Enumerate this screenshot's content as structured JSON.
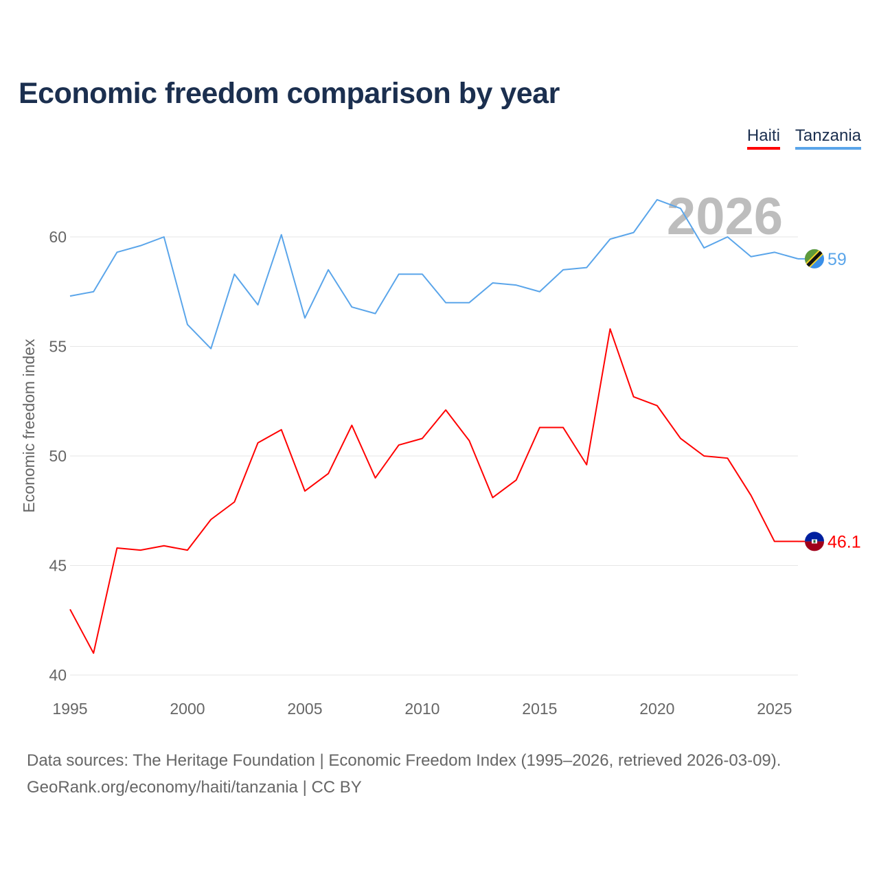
{
  "chart_data": {
    "type": "line",
    "title": "Economic freedom comparison by year",
    "xlabel": "",
    "ylabel": "Economic freedom index",
    "xlim": [
      1995,
      2026
    ],
    "ylim": [
      40,
      62
    ],
    "yticks": [
      40,
      45,
      50,
      55,
      60
    ],
    "xticks": [
      1995,
      2000,
      2005,
      2010,
      2015,
      2020,
      2025
    ],
    "grid": true,
    "legend_position": "top-right",
    "year_watermark": "2026",
    "x": [
      1995,
      1996,
      1997,
      1998,
      1999,
      2000,
      2001,
      2002,
      2003,
      2004,
      2005,
      2006,
      2007,
      2008,
      2009,
      2010,
      2011,
      2012,
      2013,
      2014,
      2015,
      2016,
      2017,
      2018,
      2019,
      2020,
      2021,
      2022,
      2023,
      2024,
      2025,
      2026
    ],
    "series": [
      {
        "name": "Haiti",
        "color": "#ff0000",
        "end_label": "46.1",
        "values": [
          43.0,
          41.0,
          45.8,
          45.7,
          45.9,
          45.7,
          47.1,
          47.9,
          50.6,
          51.2,
          48.4,
          49.2,
          51.4,
          49.0,
          50.5,
          50.8,
          52.1,
          50.7,
          48.1,
          48.9,
          51.3,
          51.3,
          49.6,
          55.8,
          52.7,
          52.3,
          50.8,
          50.0,
          49.9,
          48.2,
          46.1,
          46.1
        ]
      },
      {
        "name": "Tanzania",
        "color": "#5aa5ea",
        "end_label": "59",
        "values": [
          57.3,
          57.5,
          59.3,
          59.6,
          60.0,
          56.0,
          54.9,
          58.3,
          56.9,
          60.1,
          56.3,
          58.5,
          56.8,
          56.5,
          58.3,
          58.3,
          57.0,
          57.0,
          57.9,
          57.8,
          57.5,
          58.5,
          58.6,
          59.9,
          60.2,
          61.7,
          61.3,
          59.5,
          60.0,
          59.1,
          59.3,
          59.0
        ]
      }
    ]
  },
  "source": {
    "line1": "Data sources: The Heritage Foundation | Economic Freedom Index (1995–2026, retrieved 2026-03-09).",
    "line2": "GeoRank.org/economy/haiti/tanzania | CC BY"
  }
}
